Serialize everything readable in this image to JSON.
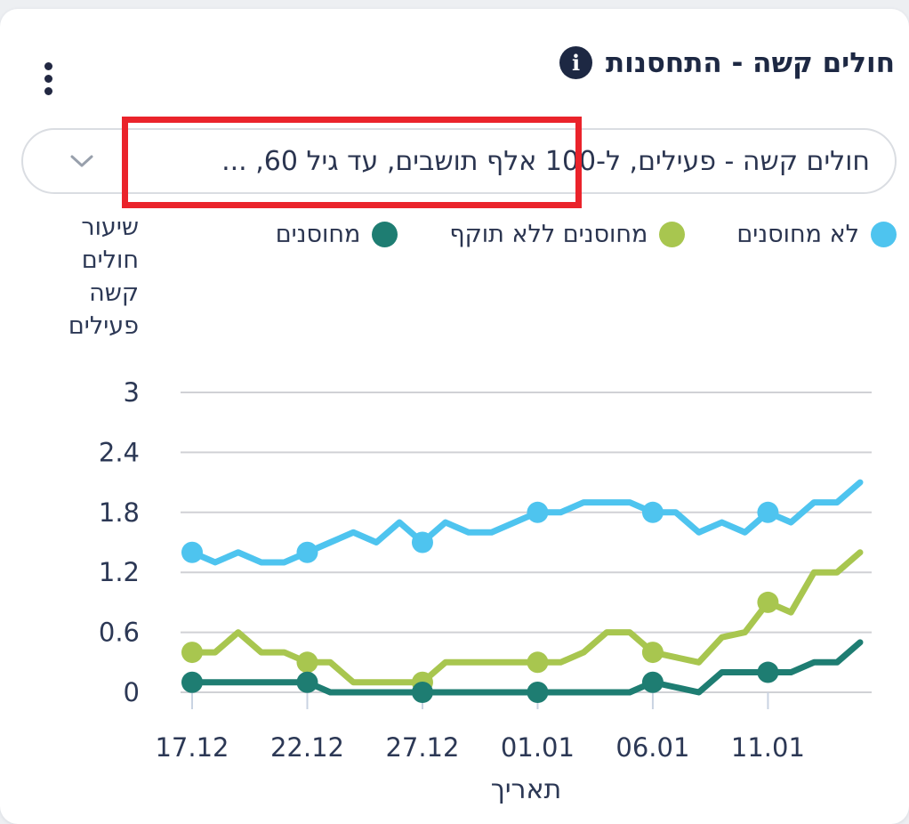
{
  "window": {
    "background": "#edeff2",
    "card_background": "#ffffff"
  },
  "header": {
    "title": "חולים קשה - התחסנות",
    "info_icon_glyph": "i",
    "menu_icon": "kebab-vertical"
  },
  "filter_dropdown": {
    "value": "חולים קשה - פעילים, ל-100 אלף תושבים, עד גיל 60, ...",
    "chevron_icon": "chevron-down"
  },
  "annotation_box": {
    "shape": "rectangle",
    "color": "#ea232b"
  },
  "chart_data": {
    "type": "line",
    "x_axis_title": "תאריך",
    "y_axis_title": "שיעור חולים קשה פעילים",
    "y_axis_title_lines": [
      "שיעור",
      "חולים",
      "קשה",
      "פעילים"
    ],
    "ylim": [
      0,
      3
    ],
    "y_ticks": [
      0,
      0.6,
      1.2,
      1.8,
      2.4,
      3
    ],
    "x_labels": [
      "17.12",
      "22.12",
      "27.12",
      "01.01",
      "06.01",
      "11.01"
    ],
    "x_label_indices": [
      0,
      5,
      10,
      15,
      20,
      25
    ],
    "marker_indices": [
      0,
      5,
      10,
      15,
      20,
      25
    ],
    "n_points": 30,
    "grid": true,
    "legend_position": "top",
    "series": [
      {
        "name": "לא מחוסנים",
        "color": "#4ec4ef",
        "values": [
          1.4,
          1.3,
          1.4,
          1.3,
          1.3,
          1.4,
          1.5,
          1.6,
          1.5,
          1.7,
          1.5,
          1.7,
          1.6,
          1.6,
          1.7,
          1.8,
          1.8,
          1.9,
          1.9,
          1.9,
          1.8,
          1.8,
          1.6,
          1.7,
          1.6,
          1.8,
          1.7,
          1.9,
          1.9,
          2.1
        ]
      },
      {
        "name": "מחוסנים ללא תוקף",
        "color": "#a8c64f",
        "values": [
          0.4,
          0.4,
          0.6,
          0.4,
          0.4,
          0.3,
          0.3,
          0.1,
          0.1,
          0.1,
          0.1,
          0.3,
          0.3,
          0.3,
          0.3,
          0.3,
          0.3,
          0.4,
          0.6,
          0.6,
          0.4,
          0.35,
          0.3,
          0.55,
          0.6,
          0.9,
          0.8,
          1.2,
          1.2,
          1.4
        ]
      },
      {
        "name": "מחוסנים",
        "color": "#1e7d72",
        "values": [
          0.1,
          0.1,
          0.1,
          0.1,
          0.1,
          0.1,
          0,
          0,
          0,
          0,
          0,
          0,
          0,
          0,
          0,
          0,
          0,
          0,
          0,
          0,
          0.1,
          0.05,
          0,
          0.2,
          0.2,
          0.2,
          0.2,
          0.3,
          0.3,
          0.5
        ]
      }
    ]
  },
  "theme": {
    "text_dark": "#1d2843",
    "axis_text": "#2c3855",
    "gridline": "#d0d1d5",
    "tick_mark": "#c9d3e2",
    "dropdown_border": "#dadde2",
    "chevron": "#98a0ac"
  }
}
